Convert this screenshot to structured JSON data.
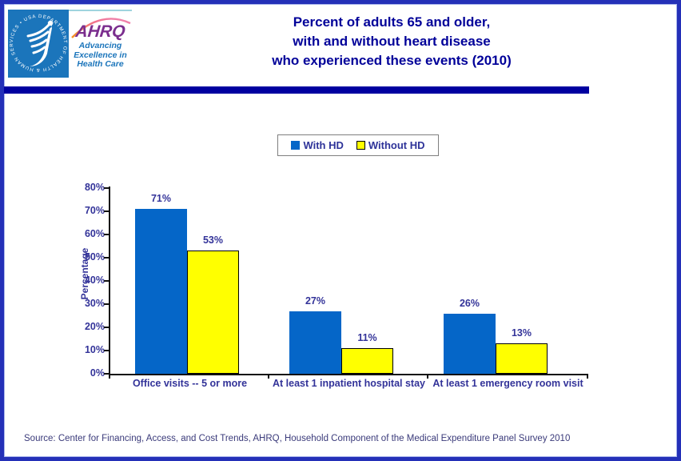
{
  "header": {
    "title_lines": [
      "Percent of adults 65 and older,",
      "with and without heart disease",
      "who experienced these events (2010)"
    ],
    "logo": {
      "hhs_ring_text": "DEPARTMENT OF HEALTH & HUMAN SERVICES • USA",
      "ahrq_acronym": "AHRQ",
      "ahrq_tagline_lines": [
        "Advancing",
        "Excellence in",
        "Health Care"
      ]
    }
  },
  "legend": {
    "items": [
      {
        "label": "With HD",
        "color": "#0566c8"
      },
      {
        "label": "Without HD",
        "color": "#ffff00"
      }
    ]
  },
  "chart_data": {
    "type": "bar",
    "title": "Percent of adults 65 and older, with and without heart disease who experienced these events (2010)",
    "categories": [
      "Office visits -- 5 or more",
      "At least 1 inpatient hospital stay",
      "At least 1 emergency room visit"
    ],
    "series": [
      {
        "name": "With HD",
        "color": "#0566c8",
        "values": [
          71,
          27,
          26
        ],
        "value_labels": [
          "71%",
          "27%",
          "26%"
        ]
      },
      {
        "name": "Without HD",
        "color": "#ffff00",
        "values": [
          53,
          11,
          13
        ],
        "value_labels": [
          "53%",
          "11%",
          "13%"
        ]
      }
    ],
    "xlabel": "",
    "ylabel": "Percentage",
    "ylim": [
      0,
      80
    ],
    "yticks": [
      "0%",
      "10%",
      "20%",
      "30%",
      "40%",
      "50%",
      "60%",
      "70%",
      "80%"
    ],
    "grid": false,
    "legend_position": "top-center"
  },
  "footer": {
    "source": "Source: Center for Financing, Access, and Cost Trends, AHRQ, Household Component of the Medical Expenditure Panel Survey 2010"
  },
  "colors": {
    "frame_border": "#2430b8",
    "divider": "#0000a0",
    "title_text": "#000099",
    "chart_text": "#333399",
    "bar_blue": "#0566c8",
    "bar_yellow": "#ffff00",
    "hhs_blue": "#1b75bb",
    "ahrq_purple": "#7b2e8e"
  }
}
